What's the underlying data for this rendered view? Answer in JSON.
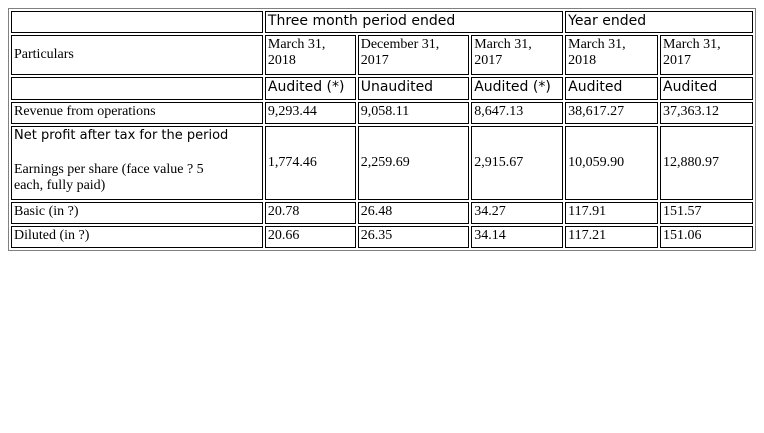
{
  "table": {
    "group_headers": {
      "three_month": "Three month period ended",
      "year": "Year ended"
    },
    "particulars_label": "Particulars",
    "dates": [
      [
        "March 31,",
        "2018"
      ],
      [
        "December 31,",
        "2017"
      ],
      [
        "March 31,",
        "2017"
      ],
      [
        "March 31,",
        "2018"
      ],
      [
        "March 31,",
        "2017"
      ]
    ],
    "audit_status": [
      "Audited (*)",
      "Unaudited",
      "Audited (*)",
      "Audited",
      "Audited"
    ],
    "rows": {
      "revenue": {
        "label": "Revenue from operations",
        "values": [
          "9,293.44",
          "9,058.11",
          "8,647.13",
          "38,617.27",
          "37,363.12"
        ]
      },
      "net_profit": {
        "label": "Net profit after tax for the period",
        "eps_label_line1": "Earnings per share (face value ? 5",
        "eps_label_line2": "each, fully paid)",
        "values": [
          "1,774.46",
          "2,259.69",
          "2,915.67",
          "10,059.90",
          "12,880.97"
        ]
      },
      "basic": {
        "label": "Basic (in ?)",
        "values": [
          "20.78",
          "26.48",
          "34.27",
          "117.91",
          "151.57"
        ]
      },
      "diluted": {
        "label": "Diluted (in ?)",
        "values": [
          "20.66",
          "26.35",
          "34.14",
          "117.21",
          "151.06"
        ]
      }
    }
  }
}
